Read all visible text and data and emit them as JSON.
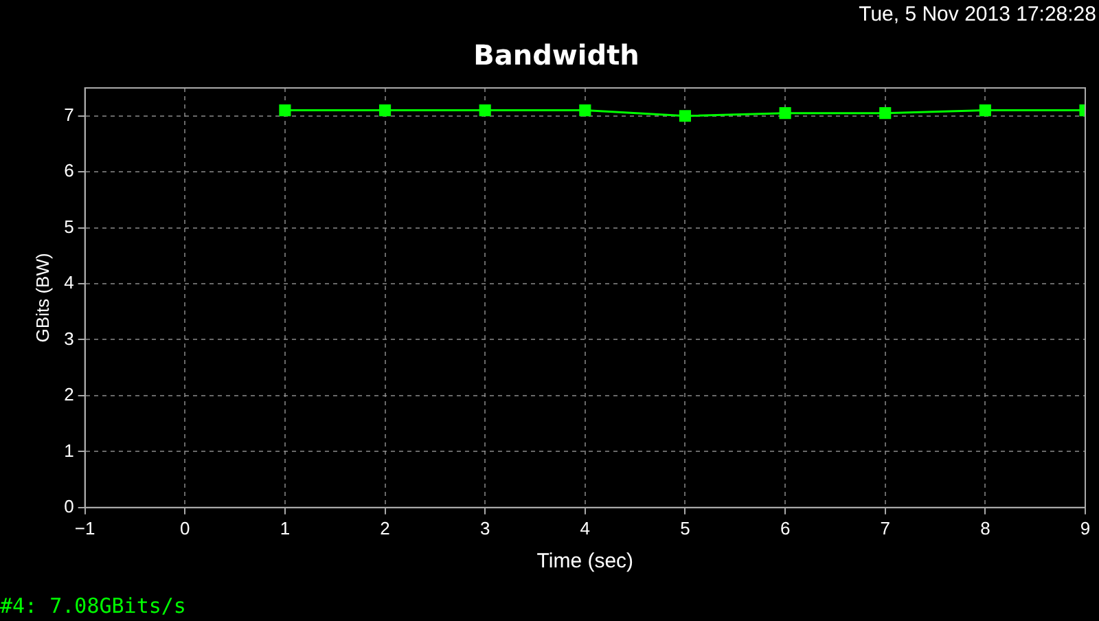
{
  "chart_data": {
    "type": "line",
    "title": "Bandwidth",
    "xlabel": "Time (sec)",
    "ylabel": "GBits (BW)",
    "annotations": [
      "Tue, 5 Nov 2013 17:28:28",
      "#4: 7.08GBits/s"
    ],
    "x": [
      1,
      2,
      3,
      4,
      5,
      6,
      7,
      8,
      9
    ],
    "series": [
      {
        "color": "#00ff00",
        "values": [
          7.1,
          7.1,
          7.1,
          7.1,
          7.0,
          7.05,
          7.05,
          7.1,
          7.1
        ]
      }
    ],
    "xlim": [
      -1,
      9
    ],
    "xticks": [
      -1,
      0,
      1,
      2,
      3,
      4,
      5,
      6,
      7,
      8,
      9
    ],
    "ylim": [
      0,
      7.5
    ],
    "yticks": [
      0,
      1,
      2,
      3,
      4,
      5,
      6,
      7
    ],
    "grid": true,
    "legend": false,
    "marker": "square",
    "line_style": "solid"
  }
}
